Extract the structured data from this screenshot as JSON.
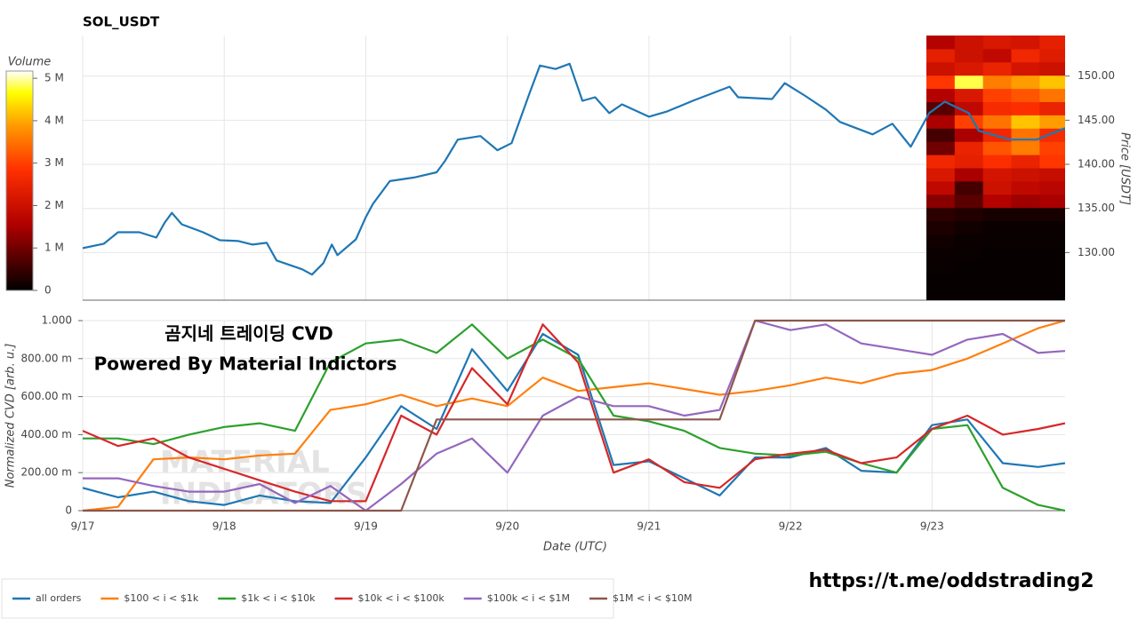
{
  "chart_data": [
    {
      "type": "line",
      "title": "SOL_USDT",
      "ylabel": "Price [USDT]",
      "color": "#1f77b4",
      "xlim": [
        0,
        6.94
      ],
      "xticks": [
        0,
        1,
        2,
        3,
        4,
        5,
        6
      ],
      "ylim": [
        124.6,
        154.6
      ],
      "yticks": [
        {
          "value": 130,
          "label": "130.00"
        },
        {
          "value": 135,
          "label": "135.00"
        },
        {
          "value": 140,
          "label": "140.00"
        },
        {
          "value": 145,
          "label": "145.00"
        },
        {
          "value": 150,
          "label": "150.00"
        }
      ],
      "grid": true,
      "x": [
        0,
        0.15,
        0.25,
        0.4,
        0.52,
        0.58,
        0.63,
        0.7,
        0.85,
        0.97,
        1.1,
        1.2,
        1.3,
        1.37,
        1.55,
        1.62,
        1.7,
        1.76,
        1.8,
        1.93,
        2,
        2.05,
        2.17,
        2.34,
        2.5,
        2.56,
        2.65,
        2.81,
        2.93,
        3.03,
        3.16,
        3.23,
        3.34,
        3.44,
        3.53,
        3.62,
        3.72,
        3.81,
        4,
        4.13,
        4.31,
        4.57,
        4.63,
        4.87,
        4.96,
        5.1,
        5.25,
        5.35,
        5.58,
        5.72,
        5.85,
        5.98,
        6.09,
        6.26,
        6.33,
        6.55,
        6.74,
        6.94
      ],
      "values": [
        130.5,
        131,
        132.3,
        132.3,
        131.7,
        133.4,
        134.5,
        133.2,
        132.3,
        131.4,
        131.3,
        130.9,
        131.1,
        129.1,
        128.1,
        127.5,
        128.8,
        130.9,
        129.7,
        131.5,
        134,
        135.5,
        138.1,
        138.5,
        139.1,
        140.4,
        142.8,
        143.2,
        141.6,
        142.4,
        148.2,
        151.2,
        150.8,
        151.4,
        147.2,
        147.6,
        145.8,
        146.8,
        145.4,
        146,
        147.2,
        148.8,
        147.6,
        147.4,
        149.2,
        147.8,
        146.2,
        144.8,
        143.4,
        144.6,
        142,
        145.8,
        147.1,
        145.8,
        143.8,
        142.8,
        142.8,
        144.1
      ],
      "heatmap": {
        "x_edges": [
          5.96,
          6.16,
          6.36,
          6.56,
          6.76,
          6.94
        ],
        "y_edges": [
          124.6,
          126.1,
          127.6,
          129.1,
          130.6,
          132.1,
          133.6,
          135.1,
          136.6,
          138.1,
          139.6,
          141.1,
          142.6,
          144.1,
          145.6,
          147.1,
          148.6,
          150.1,
          151.6,
          153.1,
          154.6
        ],
        "values": [
          [
            50000,
            50000,
            50000,
            50000,
            50000
          ],
          [
            50000,
            50000,
            50000,
            50000,
            50000
          ],
          [
            80000,
            60000,
            50000,
            50000,
            50000
          ],
          [
            100000,
            80000,
            60000,
            60000,
            60000
          ],
          [
            150000,
            100000,
            80000,
            80000,
            80000
          ],
          [
            250000,
            150000,
            100000,
            100000,
            100000
          ],
          [
            400000,
            300000,
            200000,
            200000,
            200000
          ],
          [
            1200000,
            800000,
            1600000,
            1400000,
            1500000
          ],
          [
            1800000,
            600000,
            2000000,
            1800000,
            1700000
          ],
          [
            2200000,
            1500000,
            2100000,
            2000000,
            1900000
          ],
          [
            2600000,
            2400000,
            2800000,
            2500000,
            2900000
          ],
          [
            1000000,
            2500000,
            3200000,
            3600000,
            3000000
          ],
          [
            600000,
            1500000,
            2600000,
            3500000,
            2700000
          ],
          [
            1500000,
            3000000,
            3500000,
            4200000,
            3900000
          ],
          [
            800000,
            1800000,
            2700000,
            2800000,
            2500000
          ],
          [
            1600000,
            2200000,
            3000000,
            3200000,
            3500000
          ],
          [
            2900000,
            4800000,
            3600000,
            3900000,
            4200000
          ],
          [
            2000000,
            2200000,
            2500000,
            2100000,
            2000000
          ],
          [
            2400000,
            2000000,
            1800000,
            2600000,
            2300000
          ],
          [
            1600000,
            2000000,
            2200000,
            2100000,
            2400000
          ]
        ]
      },
      "colorbar": {
        "label": "Volume",
        "clim": [
          0,
          5170000
        ],
        "ticks": [
          0,
          {
            "value": 1000000,
            "label": "1 M"
          },
          {
            "value": 2000000,
            "label": "2 M"
          },
          {
            "value": 3000000,
            "label": "3 M"
          },
          {
            "value": 4000000,
            "label": "4 M"
          },
          {
            "value": 5000000,
            "label": "5 M"
          }
        ]
      }
    },
    {
      "type": "line",
      "ylabel": "Normalized CVD [arb. u.]",
      "xlabel": "Date (UTC)",
      "xlim": [
        0,
        6.94
      ],
      "xticks": [
        {
          "value": 0,
          "label": "9/17"
        },
        {
          "value": 1,
          "label": "9/18"
        },
        {
          "value": 2,
          "label": "9/19"
        },
        {
          "value": 3,
          "label": "9/20"
        },
        {
          "value": 4,
          "label": "9/21"
        },
        {
          "value": 5,
          "label": "9/22"
        },
        {
          "value": 6,
          "label": "9/23"
        }
      ],
      "ylim": [
        0,
        1
      ],
      "yticks": [
        0,
        {
          "value": 0.2,
          "label": "200.00 m"
        },
        {
          "value": 0.4,
          "label": "400.00 m"
        },
        {
          "value": 0.6,
          "label": "600.00 m"
        },
        {
          "value": 0.8,
          "label": "800.00 m"
        },
        {
          "value": 1,
          "label": "1.000"
        }
      ],
      "grid": true,
      "annotations": [
        "곰지네 트레이딩 CVD",
        "Powered By Material Indictors"
      ],
      "watermark": [
        "MATERIAL",
        "INDICATORS"
      ],
      "x": [
        0,
        0.25,
        0.5,
        0.75,
        1,
        1.25,
        1.5,
        1.75,
        2,
        2.25,
        2.5,
        2.75,
        3,
        3.25,
        3.5,
        3.75,
        4,
        4.25,
        4.5,
        4.75,
        5,
        5.25,
        5.5,
        5.75,
        6,
        6.25,
        6.5,
        6.75,
        6.94
      ],
      "series": [
        {
          "name": "all orders",
          "color": "#1f77b4",
          "values": [
            0.12,
            0.07,
            0.1,
            0.05,
            0.03,
            0.08,
            0.05,
            0.04,
            0.28,
            0.55,
            0.43,
            0.85,
            0.63,
            0.93,
            0.82,
            0.24,
            0.26,
            0.17,
            0.08,
            0.28,
            0.28,
            0.33,
            0.21,
            0.2,
            0.45,
            0.48,
            0.25,
            0.23,
            0.25
          ]
        },
        {
          "name": "$100 < i < $1k",
          "color": "#ff7f0e",
          "values": [
            0,
            0.02,
            0.27,
            0.28,
            0.27,
            0.29,
            0.3,
            0.53,
            0.56,
            0.61,
            0.55,
            0.59,
            0.55,
            0.7,
            0.63,
            0.65,
            0.67,
            0.64,
            0.61,
            0.63,
            0.66,
            0.7,
            0.67,
            0.72,
            0.74,
            0.8,
            0.88,
            0.96,
            1
          ]
        },
        {
          "name": "$1k < i < $10k",
          "color": "#2ca02c",
          "values": [
            0.38,
            0.38,
            0.35,
            0.4,
            0.44,
            0.46,
            0.42,
            0.78,
            0.88,
            0.9,
            0.83,
            0.98,
            0.8,
            0.9,
            0.8,
            0.5,
            0.47,
            0.42,
            0.33,
            0.3,
            0.29,
            0.31,
            0.25,
            0.2,
            0.43,
            0.45,
            0.12,
            0.03,
            0
          ]
        },
        {
          "name": "$10k < i < $100k",
          "color": "#d62728",
          "values": [
            0.42,
            0.34,
            0.38,
            0.28,
            0.22,
            0.16,
            0.1,
            0.05,
            0.05,
            0.5,
            0.4,
            0.75,
            0.56,
            0.98,
            0.78,
            0.2,
            0.27,
            0.15,
            0.12,
            0.27,
            0.3,
            0.32,
            0.25,
            0.28,
            0.43,
            0.5,
            0.4,
            0.43,
            0.46
          ]
        },
        {
          "name": "$100k < i < $1M",
          "color": "#9467bd",
          "values": [
            0.17,
            0.17,
            0.13,
            0.1,
            0.1,
            0.14,
            0.04,
            0.13,
            0,
            0.14,
            0.3,
            0.38,
            0.2,
            0.5,
            0.6,
            0.55,
            0.55,
            0.5,
            0.53,
            1,
            0.95,
            0.98,
            0.88,
            0.85,
            0.82,
            0.9,
            0.93,
            0.83,
            0.84
          ]
        },
        {
          "name": "$1M < i < $10M",
          "color": "#8c564b",
          "values": [
            0,
            0,
            0,
            0,
            0,
            0,
            0,
            0,
            0,
            0,
            0.48,
            0.48,
            0.48,
            0.48,
            0.48,
            0.48,
            0.48,
            0.48,
            0.48,
            1,
            1,
            1,
            1,
            1,
            1,
            1,
            1,
            1,
            1
          ]
        }
      ]
    }
  ],
  "footer_link": "https://t.me/oddstrading2"
}
